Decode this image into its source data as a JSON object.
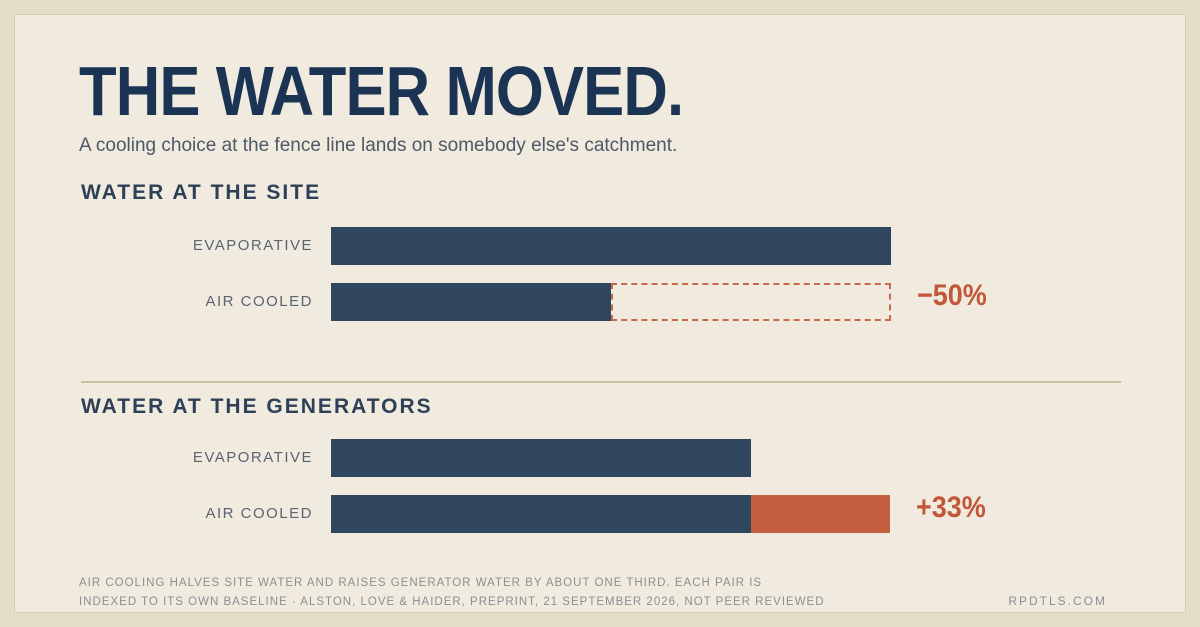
{
  "title": "THE WATER MOVED.",
  "subtitle": "A cooling choice at the fence line lands on somebody else's catchment.",
  "chart_data": [
    {
      "type": "bar",
      "title": "WATER AT THE SITE",
      "categories": [
        "EVAPORATIVE",
        "AIR COOLED"
      ],
      "values": [
        100,
        50
      ],
      "baseline": 100,
      "change_label": "−50%",
      "change_style": "decrease-dashed-gap"
    },
    {
      "type": "bar",
      "title": "WATER AT THE GENERATORS",
      "categories": [
        "EVAPORATIVE",
        "AIR COOLED"
      ],
      "values": [
        100,
        133
      ],
      "baseline": 100,
      "change_label": "+33%",
      "change_style": "increase-accent-segment"
    }
  ],
  "colors": {
    "bar": "#30465e",
    "accent": "#c35f3e",
    "title": "#1b3454",
    "background": "#f1eadf"
  },
  "footnote": {
    "line1": "AIR COOLING HALVES SITE WATER AND RAISES GENERATOR WATER BY ABOUT ONE THIRD. EACH PAIR IS",
    "line2": "INDEXED TO ITS OWN BASELINE · ALSTON, LOVE & HAIDER, PREPRINT, 21 SEPTEMBER 2026, NOT PEER REVIEWED"
  },
  "brand": "RPDTLS.COM"
}
